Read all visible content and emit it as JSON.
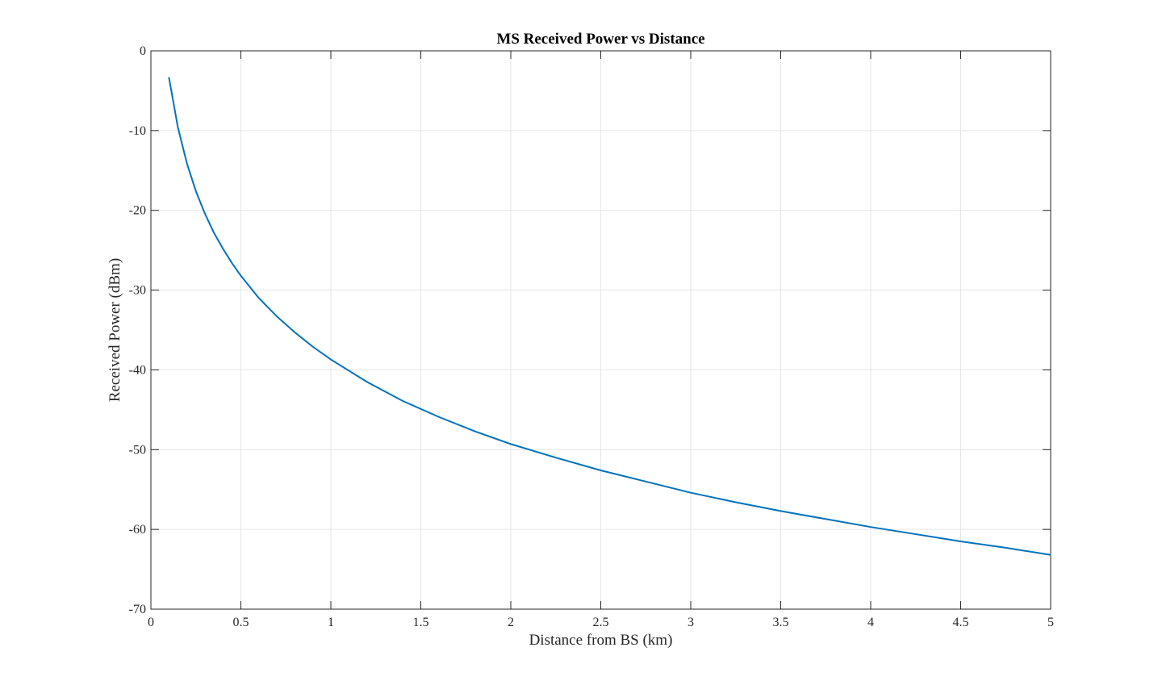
{
  "chart_data": {
    "type": "line",
    "title": "MS Received Power vs Distance",
    "xlabel": "Distance from BS (km)",
    "ylabel": "Received Power (dBm)",
    "xlim": [
      0,
      5
    ],
    "ylim": [
      -70,
      0
    ],
    "x_ticks": [
      0,
      0.5,
      1,
      1.5,
      2,
      2.5,
      3,
      3.5,
      4,
      4.5,
      5
    ],
    "x_tick_labels": [
      "0",
      "0.5",
      "1",
      "1.5",
      "2",
      "2.5",
      "3",
      "3.5",
      "4",
      "4.5",
      "5"
    ],
    "y_ticks": [
      0,
      -10,
      -20,
      -30,
      -40,
      -50,
      -60,
      -70
    ],
    "y_tick_labels": [
      "0",
      "-10",
      "-20",
      "-30",
      "-40",
      "-50",
      "-60",
      "-70"
    ],
    "grid": true,
    "series": [
      {
        "color": "#0072BD",
        "x": [
          0.1,
          0.15,
          0.2,
          0.25,
          0.3,
          0.35,
          0.4,
          0.45,
          0.5,
          0.6,
          0.7,
          0.8,
          0.9,
          1.0,
          1.2,
          1.4,
          1.5,
          1.6,
          1.8,
          2.0,
          2.25,
          2.5,
          2.75,
          3.0,
          3.25,
          3.5,
          3.75,
          4.0,
          4.25,
          4.5,
          4.75,
          5.0
        ],
        "y": [
          -3.3,
          -9.6,
          -14.1,
          -17.6,
          -20.4,
          -22.8,
          -24.8,
          -26.6,
          -28.2,
          -31.0,
          -33.3,
          -35.3,
          -37.1,
          -38.7,
          -41.5,
          -43.9,
          -44.9,
          -45.9,
          -47.7,
          -49.3,
          -51.0,
          -52.6,
          -54.0,
          -55.4,
          -56.6,
          -57.7,
          -58.7,
          -59.7,
          -60.6,
          -61.5,
          -62.3,
          -63.2
        ]
      }
    ]
  }
}
